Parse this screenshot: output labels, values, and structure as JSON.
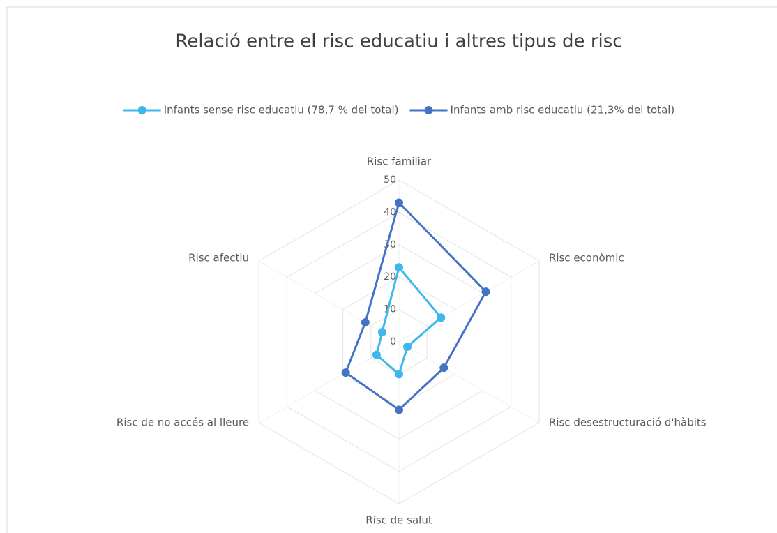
{
  "chart_data": {
    "type": "radar",
    "title": "Relació entre el risc educatiu i altres tipus de risc",
    "categories": [
      "Risc familiar",
      "Risc econòmic",
      "Risc desestructuració d'hàbits",
      "Risc de salut",
      "Risc de no accés al lleure",
      "Risc afectiu"
    ],
    "series": [
      {
        "name": "Infants sense risc educatiu (78,7 % del total)",
        "color": "#3db8ec",
        "values": [
          23,
          15,
          3,
          10,
          8,
          6
        ]
      },
      {
        "name": "Infants amb risc educatiu (21,3% del total)",
        "color": "#4472c4",
        "values": [
          43,
          31,
          16,
          21,
          19,
          12
        ]
      }
    ],
    "ylim": [
      0,
      50
    ],
    "yticks": [
      0,
      10,
      20,
      30,
      40,
      50
    ],
    "grid": true,
    "legend": "top"
  }
}
